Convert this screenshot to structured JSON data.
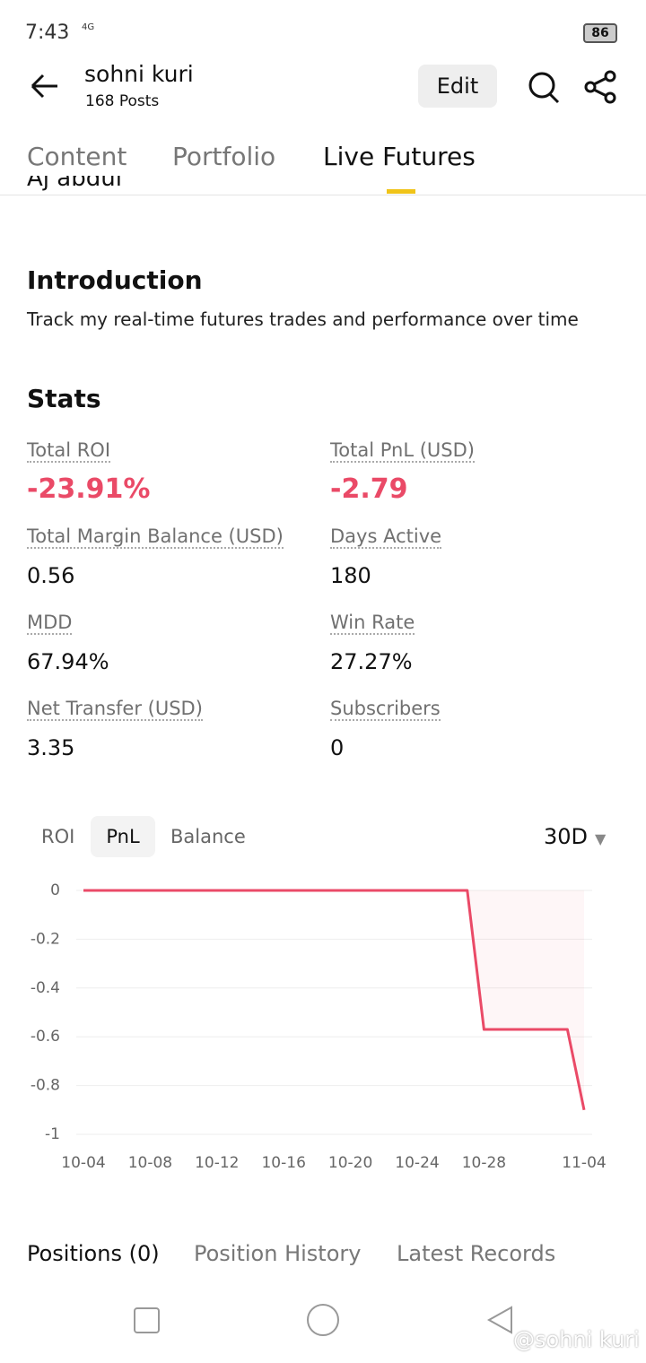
{
  "status_bar": {
    "time": "7:43",
    "network": "4G",
    "battery": "86"
  },
  "header": {
    "name": "sohni kuri",
    "posts": "168 Posts",
    "edit": "Edit"
  },
  "tabs": [
    "Content",
    "Portfolio",
    "Live Futures"
  ],
  "partial_name": "Aj abdul",
  "introduction": {
    "title": "Introduction",
    "text": "Track my real-time futures trades and performance over time"
  },
  "stats": {
    "title": "Stats",
    "items": [
      {
        "label": "Total ROI",
        "value": "-23.91%"
      },
      {
        "label": "Total PnL (USD)",
        "value": "-2.79"
      },
      {
        "label": "Total Margin Balance (USD)",
        "value": "0.56"
      },
      {
        "label": "Days Active",
        "value": "180"
      },
      {
        "label": "MDD",
        "value": "67.94%"
      },
      {
        "label": "Win Rate",
        "value": "27.27%"
      },
      {
        "label": "Net Transfer (USD)",
        "value": "3.35"
      },
      {
        "label": "Subscribers",
        "value": "0"
      }
    ]
  },
  "chart_tabs": [
    "ROI",
    "PnL",
    "Balance"
  ],
  "range": "30D",
  "chart_data": {
    "type": "line",
    "categories": [
      "10-04",
      null,
      null,
      null,
      "10-08",
      null,
      null,
      null,
      "10-12",
      null,
      null,
      null,
      "10-16",
      null,
      null,
      null,
      "10-20",
      null,
      null,
      null,
      "10-24",
      null,
      null,
      null,
      "10-28",
      null,
      null,
      null,
      null,
      null,
      "11-04"
    ],
    "series": [
      {
        "color": "#ea4a67",
        "values": [
          0,
          0,
          0,
          0,
          0,
          0,
          0,
          0,
          0,
          0,
          0,
          0,
          0,
          0,
          0,
          0,
          0,
          0,
          0,
          0,
          0,
          0,
          0,
          0,
          -0.57,
          -0.57,
          -0.57,
          -0.57,
          -0.57,
          -0.57,
          -0.9
        ]
      }
    ],
    "ylim": [
      -1,
      0
    ],
    "yticks": [
      0,
      -0.2,
      -0.4,
      -0.6,
      -0.8,
      -1
    ],
    "grid": true
  },
  "bottom_tabs": [
    "Positions (0)",
    "Position History",
    "Latest Records"
  ],
  "watermark": "@sohni kuri"
}
